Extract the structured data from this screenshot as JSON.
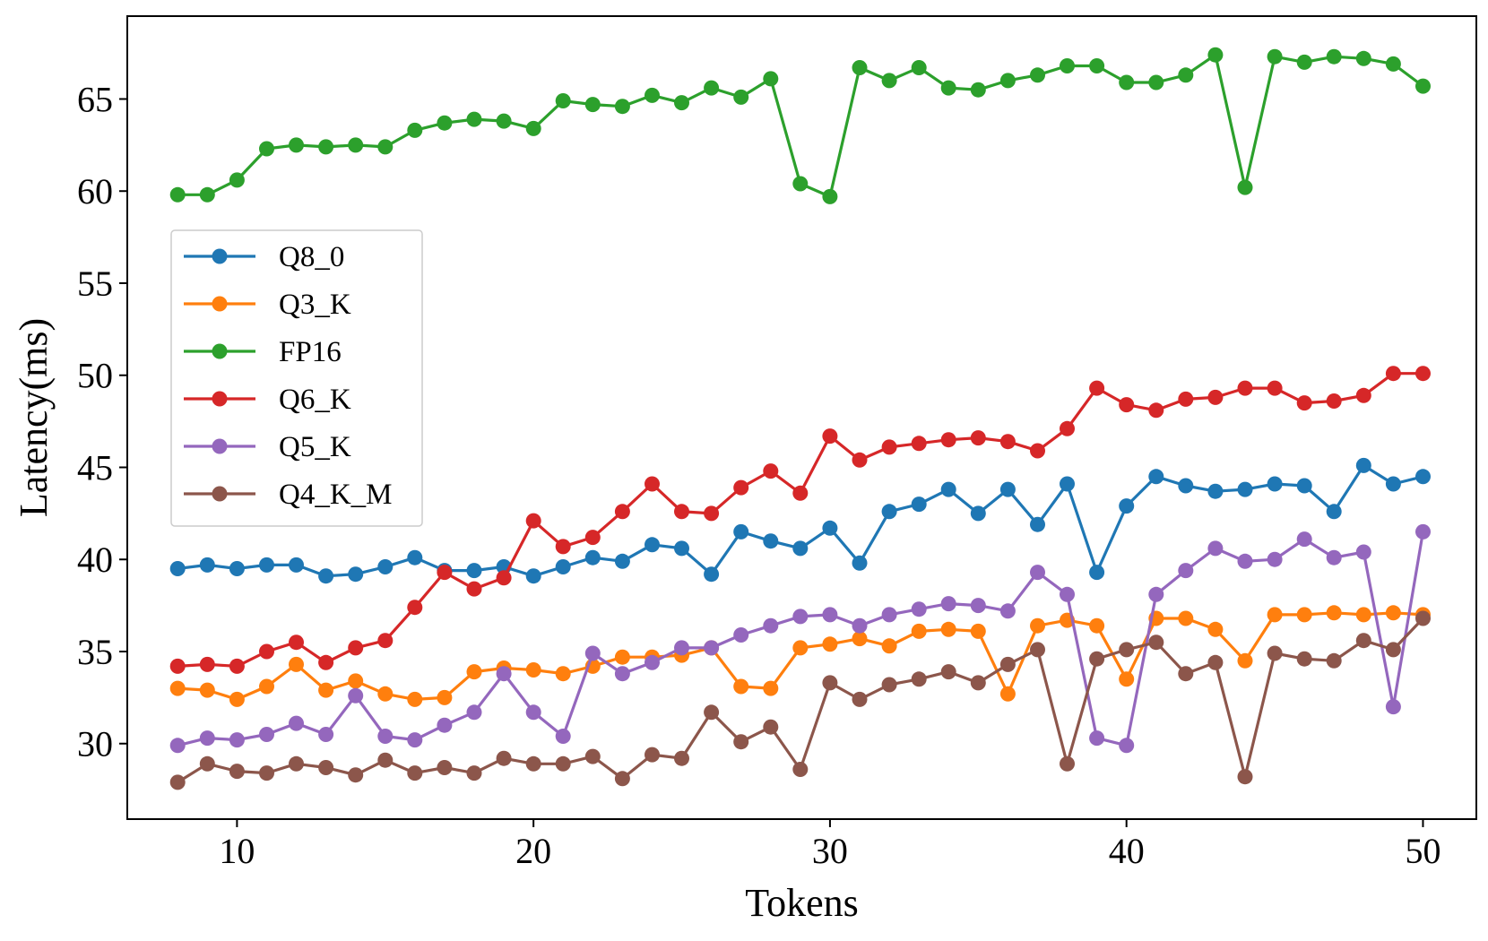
{
  "chart_data": {
    "type": "line",
    "title": "",
    "xlabel": "Tokens",
    "ylabel": "Latency(ms)",
    "xlim": [
      6.3,
      51.8
    ],
    "ylim": [
      25.9,
      69.5
    ],
    "xticks": [
      10,
      20,
      30,
      40,
      50
    ],
    "yticks": [
      30,
      35,
      40,
      45,
      50,
      55,
      60,
      65
    ],
    "grid": false,
    "legend_position": "center-left",
    "x": [
      8,
      9,
      10,
      11,
      12,
      13,
      14,
      15,
      16,
      17,
      18,
      19,
      20,
      21,
      22,
      23,
      24,
      25,
      26,
      27,
      28,
      29,
      30,
      31,
      32,
      33,
      34,
      35,
      36,
      37,
      38,
      39,
      40,
      41,
      42,
      43,
      44,
      45,
      46,
      47,
      48,
      49,
      50
    ],
    "series": [
      {
        "name": "Q8_0",
        "color": "#1f77b4",
        "values": [
          39.5,
          39.7,
          39.5,
          39.7,
          39.7,
          39.1,
          39.2,
          39.6,
          40.1,
          39.4,
          39.4,
          39.6,
          39.1,
          39.6,
          40.1,
          39.9,
          40.8,
          40.6,
          39.2,
          41.5,
          41.0,
          40.6,
          41.7,
          39.8,
          42.6,
          43.0,
          43.8,
          42.5,
          43.8,
          41.9,
          44.1,
          39.3,
          42.9,
          44.5,
          44.0,
          43.7,
          43.8,
          44.1,
          44.0,
          42.6,
          45.1,
          44.1,
          44.5
        ]
      },
      {
        "name": "Q3_K",
        "color": "#ff7f0e",
        "values": [
          33.0,
          32.9,
          32.4,
          33.1,
          34.3,
          32.9,
          33.4,
          32.7,
          32.4,
          32.5,
          33.9,
          34.1,
          34.0,
          33.8,
          34.2,
          34.7,
          34.7,
          34.8,
          35.2,
          33.1,
          33.0,
          35.2,
          35.4,
          35.7,
          35.3,
          36.1,
          36.2,
          36.1,
          32.7,
          36.4,
          36.7,
          36.4,
          33.5,
          36.8,
          36.8,
          36.2,
          34.5,
          37.0,
          37.0,
          37.1,
          37.0,
          37.1,
          37.0
        ]
      },
      {
        "name": "FP16",
        "color": "#2ca02c",
        "values": [
          59.8,
          59.8,
          60.6,
          62.3,
          62.5,
          62.4,
          62.5,
          62.4,
          63.3,
          63.7,
          63.9,
          63.8,
          63.4,
          64.9,
          64.7,
          64.6,
          65.2,
          64.8,
          65.6,
          65.1,
          66.1,
          60.4,
          59.7,
          66.7,
          66.0,
          66.7,
          65.6,
          65.5,
          66.0,
          66.3,
          66.8,
          66.8,
          65.9,
          65.9,
          66.3,
          67.4,
          60.2,
          67.3,
          67.0,
          67.3,
          67.2,
          66.9,
          65.7
        ]
      },
      {
        "name": "Q6_K",
        "color": "#d62728",
        "values": [
          34.2,
          34.3,
          34.2,
          35.0,
          35.5,
          34.4,
          35.2,
          35.6,
          37.4,
          39.3,
          38.4,
          39.0,
          42.1,
          40.7,
          41.2,
          42.6,
          44.1,
          42.6,
          42.5,
          43.9,
          44.8,
          43.6,
          46.7,
          45.4,
          46.1,
          46.3,
          46.5,
          46.6,
          46.4,
          45.9,
          47.1,
          49.3,
          48.4,
          48.1,
          48.7,
          48.8,
          49.3,
          49.3,
          48.5,
          48.6,
          48.9,
          50.1,
          50.1
        ]
      },
      {
        "name": "Q5_K",
        "color": "#9467bd",
        "values": [
          29.9,
          30.3,
          30.2,
          30.5,
          31.1,
          30.5,
          32.6,
          30.4,
          30.2,
          31.0,
          31.7,
          33.8,
          31.7,
          30.4,
          34.9,
          33.8,
          34.4,
          35.2,
          35.2,
          35.9,
          36.4,
          36.9,
          37.0,
          36.4,
          37.0,
          37.3,
          37.6,
          37.5,
          37.2,
          39.3,
          38.1,
          30.3,
          29.9,
          38.1,
          39.4,
          40.6,
          39.9,
          40.0,
          41.1,
          40.1,
          40.4,
          32.0,
          41.5
        ]
      },
      {
        "name": "Q4_K_M",
        "color": "#8c564b",
        "values": [
          27.9,
          28.9,
          28.5,
          28.4,
          28.9,
          28.7,
          28.3,
          29.1,
          28.4,
          28.7,
          28.4,
          29.2,
          28.9,
          28.9,
          29.3,
          28.1,
          29.4,
          29.2,
          31.7,
          30.1,
          30.9,
          28.6,
          33.3,
          32.4,
          33.2,
          33.5,
          33.9,
          33.3,
          34.3,
          35.1,
          28.9,
          34.6,
          35.1,
          35.5,
          33.8,
          34.4,
          28.2,
          34.9,
          34.6,
          34.5,
          35.6,
          35.1,
          36.8
        ]
      }
    ]
  }
}
